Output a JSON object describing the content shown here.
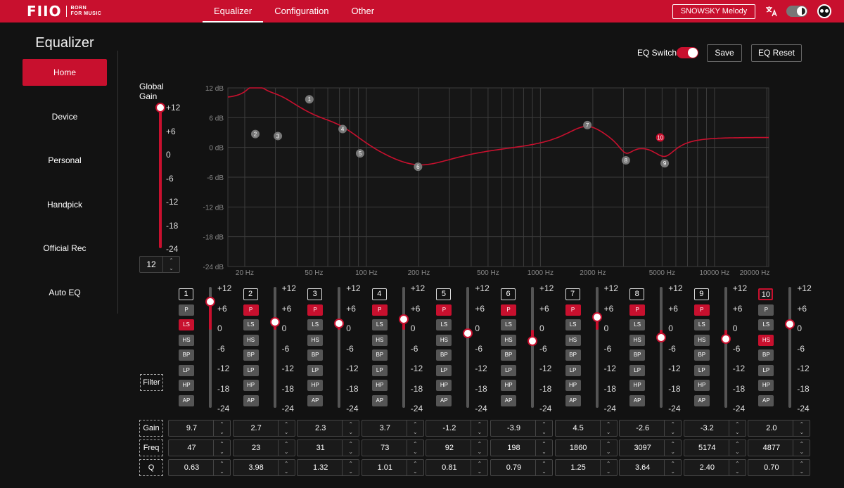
{
  "brand": {
    "mark": "FIIO",
    "tagline_1": "BORN",
    "tagline_2": "FOR MUSIC"
  },
  "nav": {
    "tabs": [
      {
        "label": "Equalizer",
        "active": true
      },
      {
        "label": "Configuration"
      },
      {
        "label": "Other"
      }
    ]
  },
  "device": {
    "name": "SNOWSKY Melody"
  },
  "sidebar": {
    "title": "Equalizer",
    "items": [
      {
        "label": "Home",
        "active": true
      },
      {
        "label": "Device"
      },
      {
        "label": "Personal"
      },
      {
        "label": "Handpick"
      },
      {
        "label": "Official Rec"
      },
      {
        "label": "Auto EQ"
      }
    ]
  },
  "controls": {
    "eq_switch_label": "EQ Switch",
    "eq_switch_on": true,
    "save_label": "Save",
    "reset_label": "EQ Reset"
  },
  "global_gain": {
    "label_1": "Global",
    "label_2": "Gain",
    "value": "12",
    "ticks": [
      "+12",
      "+6",
      "0",
      "-6",
      "-12",
      "-18",
      "-24"
    ]
  },
  "graph": {
    "y_ticks": [
      "12 dB",
      "6 dB",
      "0 dB",
      "-6 dB",
      "-12 dB",
      "-18 dB",
      "-24 dB"
    ],
    "x_ticks": [
      "20 Hz",
      "50 Hz",
      "100 Hz",
      "200 Hz",
      "500 Hz",
      "1000 Hz",
      "2000 Hz",
      "5000 Hz",
      "10000 Hz",
      "20000 Hz"
    ],
    "selected_band": 10,
    "colors": {
      "curve": "#c8102e",
      "grid": "#3c3c3c",
      "point": "#777777",
      "point_selected": "#c8102e"
    }
  },
  "slider_ticks": [
    "+12",
    "+6",
    "0",
    "-6",
    "-12",
    "-18",
    "-24"
  ],
  "filter_types": [
    "P",
    "LS",
    "HS",
    "BP",
    "LP",
    "HP",
    "AP"
  ],
  "labels": {
    "filter": "Filter",
    "gain": "Gain",
    "freq": "Freq",
    "q": "Q"
  },
  "bands": [
    {
      "num": "1",
      "type": "LS",
      "gain": "9.7",
      "freq": "47",
      "q": "0.63"
    },
    {
      "num": "2",
      "type": "P",
      "gain": "2.7",
      "freq": "23",
      "q": "3.98"
    },
    {
      "num": "3",
      "type": "P",
      "gain": "2.3",
      "freq": "31",
      "q": "1.32"
    },
    {
      "num": "4",
      "type": "P",
      "gain": "3.7",
      "freq": "73",
      "q": "1.01"
    },
    {
      "num": "5",
      "type": "P",
      "gain": "-1.2",
      "freq": "92",
      "q": "0.81"
    },
    {
      "num": "6",
      "type": "P",
      "gain": "-3.9",
      "freq": "198",
      "q": "0.79"
    },
    {
      "num": "7",
      "type": "P",
      "gain": "4.5",
      "freq": "1860",
      "q": "1.25"
    },
    {
      "num": "8",
      "type": "P",
      "gain": "-2.6",
      "freq": "3097",
      "q": "3.64"
    },
    {
      "num": "9",
      "type": "P",
      "gain": "-3.2",
      "freq": "5174",
      "q": "2.40"
    },
    {
      "num": "10",
      "type": "HS",
      "gain": "2.0",
      "freq": "4877",
      "q": "0.70"
    }
  ]
}
